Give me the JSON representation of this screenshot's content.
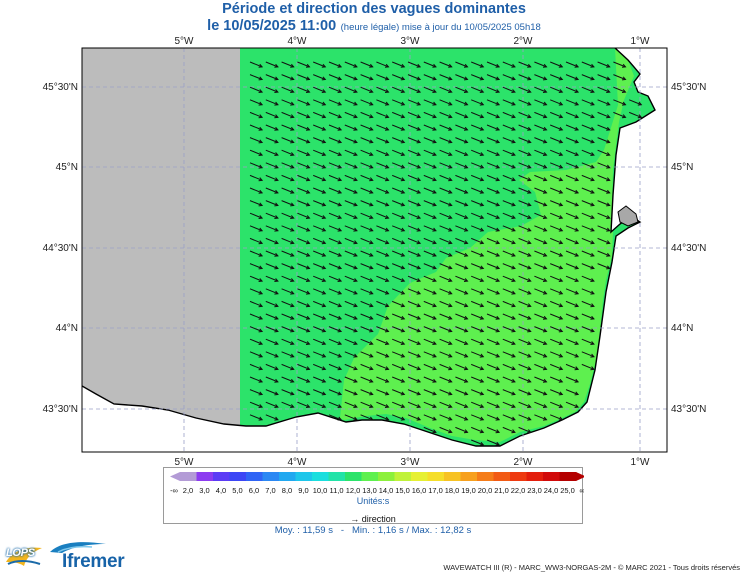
{
  "title": "Période et direction des vagues dominantes",
  "subtitle_main": "le 10/05/2025 11:00",
  "subtitle_note": "(heure légale) mise à jour du 10/05/2025 05h18",
  "map": {
    "lon_labels": [
      "5°W",
      "4°W",
      "3°W",
      "2°W",
      "1°W"
    ],
    "lat_labels": [
      "45°30'N",
      "45°N",
      "44°30'N",
      "44°N",
      "43°30'N"
    ],
    "colors": {
      "nodata": "#bcbcbc",
      "period_11_12": "#2ce36a",
      "period_12_13": "#5ef04f",
      "land": "#ffffff",
      "coast": "#000000",
      "arrow": "#111111",
      "grid": "#9aa0c8"
    },
    "arrow_direction": "east-south-east"
  },
  "legend": {
    "low_label": "-∞",
    "high_label": "∞",
    "values": [
      "2,0",
      "3,0",
      "4,0",
      "5,0",
      "6,0",
      "7,0",
      "8,0",
      "9,0",
      "10,0",
      "11,0",
      "12,0",
      "13,0",
      "14,0",
      "15,0",
      "16,0",
      "17,0",
      "18,0",
      "19,0",
      "20,0",
      "21,0",
      "22,0",
      "23,0",
      "24,0",
      "25,0"
    ],
    "colors": [
      "#b39bd6",
      "#8c3cf0",
      "#5c3cf5",
      "#3c46f5",
      "#2f64f5",
      "#2b88f3",
      "#21a8f0",
      "#1ec6ea",
      "#1adede",
      "#22e3a8",
      "#2ce36a",
      "#5ef04f",
      "#8cf03c",
      "#c0f23a",
      "#e6f033",
      "#f5de2a",
      "#f7c224",
      "#f7a01e",
      "#f57c19",
      "#f25a14",
      "#ee3a10",
      "#e31e0c",
      "#d10a0a",
      "#b40000"
    ],
    "unit": "Unités:s",
    "direction_label": "direction"
  },
  "stats": "Moy. : 11,59 s   -   Min. : 1,16 s / Max. : 12,82 s",
  "footer": "WAVEWATCH III (R) - MARC_WW3-NORGAS-2M - © MARC 2021 - Tous droits réservés",
  "logos": {
    "lops": "LOPS",
    "ifremer": "Ifremer"
  }
}
